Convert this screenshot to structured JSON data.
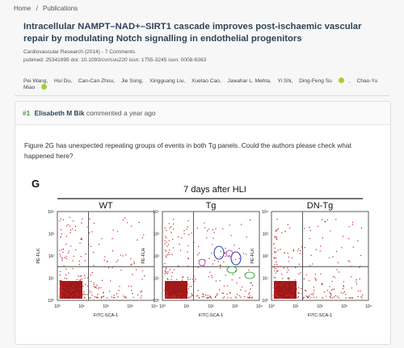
{
  "breadcrumb": {
    "home": "Home",
    "sep": "/",
    "current": "Publications"
  },
  "article": {
    "title": "Intracellular NAMPT–NAD+–SIRT1 cascade improves post-ischaemic vascular repair by modulating Notch signalling in endothelial progenitors",
    "journal_line": "Cardiovascular Research (2014) - 7 Comments",
    "ids_line": "pubmed: 25341895  doi: 10.1093/cvr/cvu220  issn: 1755-3245  issn: 0008-6363",
    "authors": [
      "Pei Wang,",
      "Hui Du,",
      "Can-Can Zhou,",
      "Jie Song,",
      "Xingguang Liu,",
      "Xuetao Cao,",
      "Jawahar L. Mehta,",
      "Yi Shi,",
      "Ding-Feng Su",
      "Chao-Yu Miao"
    ]
  },
  "comment": {
    "number": "#1",
    "author": "Elisabeth M Bik",
    "verb": "commented a year ago",
    "text": "Figure 2G has unexpected repeating groups of events in both Tg panels. Could the authors please check what happened here?"
  },
  "figure": {
    "panel_letter": "G",
    "header": "7 days after HLI",
    "panels": [
      "WT",
      "Tg",
      "DN-Tg"
    ],
    "y_label": "PE-FLK",
    "x_label": "FITC-SCA-1",
    "ticks": [
      "10⁰",
      "10¹",
      "10²",
      "10³",
      "10⁴"
    ],
    "annotation_colors": {
      "purple": "#b44fb4",
      "blue": "#2a3fbf",
      "green": "#3fae3f"
    }
  }
}
